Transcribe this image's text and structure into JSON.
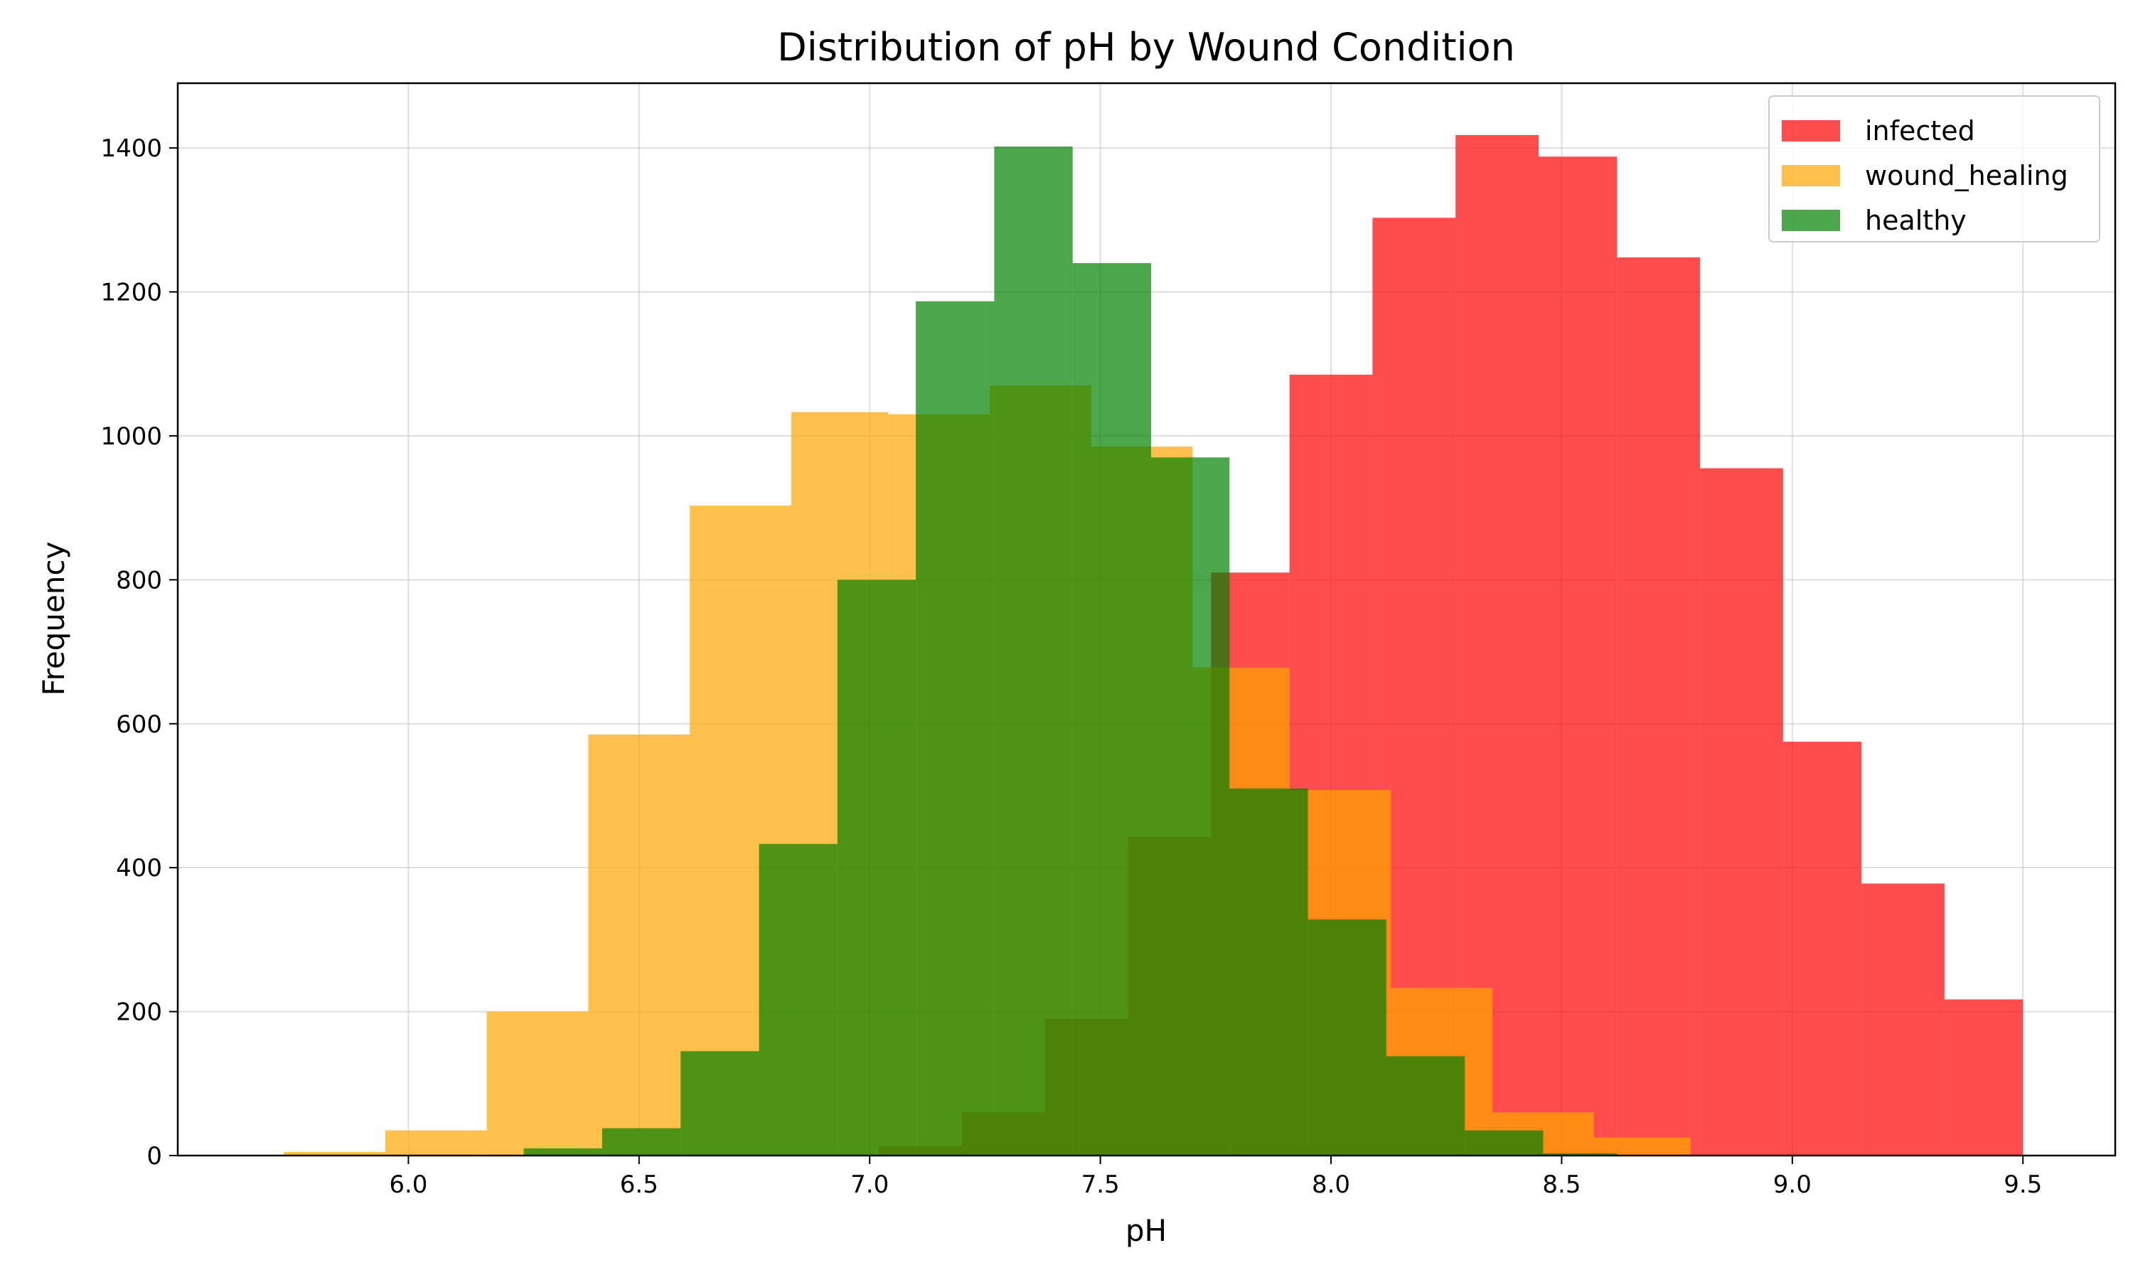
{
  "chart_data": {
    "type": "histogram",
    "title": "Distribution of pH by Wound Condition",
    "xlabel": "pH",
    "ylabel": "Frequency",
    "xlim": [
      5.5,
      9.7
    ],
    "ylim": [
      0,
      1490
    ],
    "xticks": [
      6.0,
      6.5,
      7.0,
      7.5,
      8.0,
      8.5,
      9.0,
      9.5
    ],
    "xtick_labels": [
      "6.0",
      "6.5",
      "7.0",
      "7.5",
      "8.0",
      "8.5",
      "9.0",
      "9.5"
    ],
    "yticks": [
      0,
      200,
      400,
      600,
      800,
      1000,
      1200,
      1400
    ],
    "ytick_labels": [
      "0",
      "200",
      "400",
      "600",
      "800",
      "1000",
      "1200",
      "1400"
    ],
    "grid": true,
    "legend_position": "top-right",
    "series": [
      {
        "name": "infected",
        "color": "#ff0000",
        "alpha": 0.7,
        "bin_edges": [
          7.02,
          7.2,
          7.38,
          7.56,
          7.74,
          7.91,
          8.09,
          8.27,
          8.45,
          8.62,
          8.8,
          8.98,
          9.15,
          9.33,
          9.5
        ],
        "counts": [
          13,
          60,
          190,
          443,
          810,
          1085,
          1303,
          1418,
          1388,
          1248,
          955,
          575,
          378,
          217
        ]
      },
      {
        "name": "wound_healing",
        "color": "#ffa500",
        "alpha": 0.7,
        "bin_edges": [
          5.73,
          5.95,
          6.17,
          6.39,
          6.61,
          6.83,
          7.04,
          7.26,
          7.48,
          7.7,
          7.91,
          8.13,
          8.35,
          8.57,
          8.78
        ],
        "counts": [
          5,
          35,
          200,
          585,
          903,
          1033,
          1030,
          1070,
          985,
          678,
          508,
          233,
          60,
          25
        ]
      },
      {
        "name": "healthy",
        "color": "#008000",
        "alpha": 0.7,
        "bin_edges": [
          6.25,
          6.42,
          6.59,
          6.76,
          6.93,
          7.1,
          7.27,
          7.44,
          7.61,
          7.78,
          7.95,
          8.12,
          8.29,
          8.46,
          8.62
        ],
        "counts": [
          10,
          38,
          145,
          433,
          800,
          1187,
          1402,
          1240,
          970,
          510,
          328,
          138,
          35,
          3
        ]
      }
    ]
  }
}
